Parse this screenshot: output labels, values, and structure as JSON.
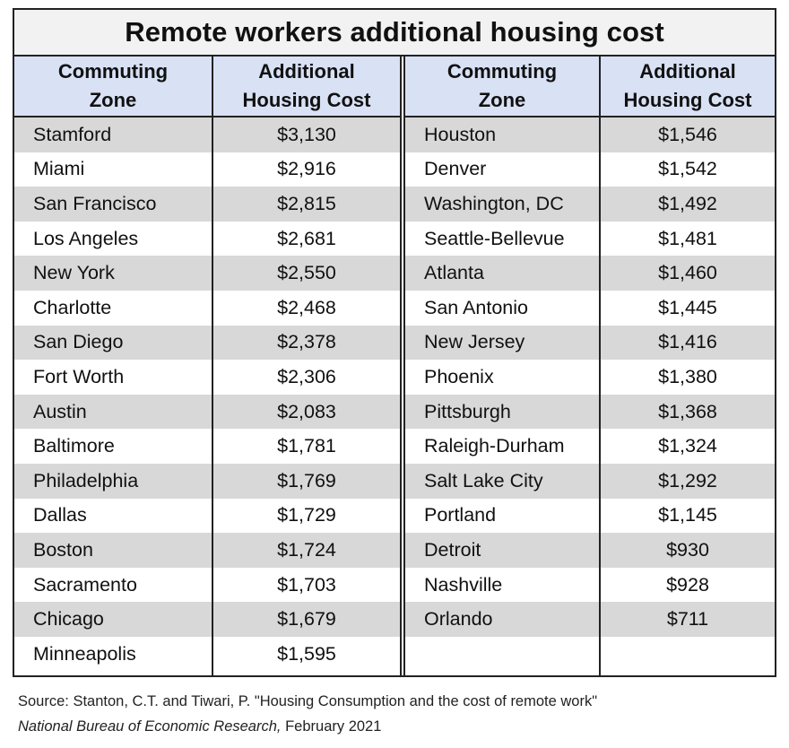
{
  "chart_data": {
    "type": "table",
    "title": "Remote workers additional housing cost",
    "columns": [
      "Commuting Zone",
      "Additional Housing Cost"
    ],
    "left_block": [
      {
        "zone": "Stamford",
        "cost": "$3,130"
      },
      {
        "zone": "Miami",
        "cost": "$2,916"
      },
      {
        "zone": "San Francisco",
        "cost": "$2,815"
      },
      {
        "zone": "Los Angeles",
        "cost": "$2,681"
      },
      {
        "zone": "New York",
        "cost": "$2,550"
      },
      {
        "zone": "Charlotte",
        "cost": "$2,468"
      },
      {
        "zone": "San Diego",
        "cost": "$2,378"
      },
      {
        "zone": "Fort Worth",
        "cost": "$2,306"
      },
      {
        "zone": "Austin",
        "cost": "$2,083"
      },
      {
        "zone": "Baltimore",
        "cost": "$1,781"
      },
      {
        "zone": "Philadelphia",
        "cost": "$1,769"
      },
      {
        "zone": "Dallas",
        "cost": "$1,729"
      },
      {
        "zone": "Boston",
        "cost": "$1,724"
      },
      {
        "zone": "Sacramento",
        "cost": "$1,703"
      },
      {
        "zone": "Chicago",
        "cost": "$1,679"
      },
      {
        "zone": "Minneapolis",
        "cost": "$1,595"
      }
    ],
    "right_block": [
      {
        "zone": "Houston",
        "cost": "$1,546"
      },
      {
        "zone": "Denver",
        "cost": "$1,542"
      },
      {
        "zone": "Washington, DC",
        "cost": "$1,492"
      },
      {
        "zone": "Seattle-Bellevue",
        "cost": "$1,481"
      },
      {
        "zone": "Atlanta",
        "cost": "$1,460"
      },
      {
        "zone": "San Antonio",
        "cost": "$1,445"
      },
      {
        "zone": "New Jersey",
        "cost": "$1,416"
      },
      {
        "zone": "Phoenix",
        "cost": "$1,380"
      },
      {
        "zone": "Pittsburgh",
        "cost": "$1,368"
      },
      {
        "zone": "Raleigh-Durham",
        "cost": "$1,324"
      },
      {
        "zone": "Salt Lake City",
        "cost": "$1,292"
      },
      {
        "zone": "Portland",
        "cost": "$1,145"
      },
      {
        "zone": "Detroit",
        "cost": "$930"
      },
      {
        "zone": "Nashville",
        "cost": "$928"
      },
      {
        "zone": "Orlando",
        "cost": "$711"
      }
    ]
  },
  "header": {
    "zone_line1": "Commuting",
    "zone_line2": "Zone",
    "cost_line1": "Additional",
    "cost_line2": "Housing Cost"
  },
  "source": {
    "line1": "Source: Stanton, C.T. and Tiwari, P. \"Housing Consumption and the cost of remote work\"",
    "publication": "National Bureau of Economic Research,",
    "date": "February 2021"
  },
  "colors": {
    "header_fill": "#d9e1f5",
    "title_fill": "#f2f2f2",
    "stripe_fill": "#d8d8d8"
  }
}
